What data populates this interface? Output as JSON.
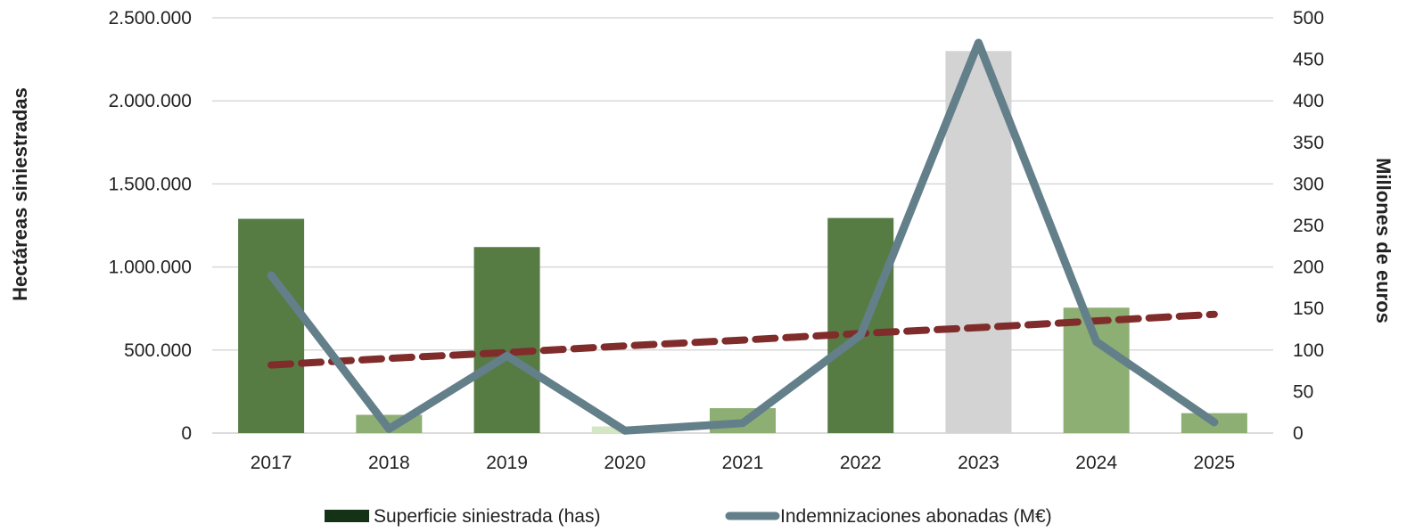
{
  "chart_data": {
    "type": "bar",
    "categories": [
      "2017",
      "2018",
      "2019",
      "2020",
      "2021",
      "2022",
      "2023",
      "2024",
      "2025"
    ],
    "ylabel_left": "Hectáreas siniestradas",
    "ylabel_right": "Millones de euros",
    "ylim_left": [
      0,
      2500000
    ],
    "ylim_right": [
      0,
      500
    ],
    "yticks_left": [
      "0",
      "500.000",
      "1.000.000",
      "1.500.000",
      "2.000.000",
      "2.500.000"
    ],
    "yticks_right": [
      "0",
      "50",
      "100",
      "150",
      "200",
      "250",
      "300",
      "350",
      "400",
      "450",
      "500"
    ],
    "grid": true,
    "legend_position": "bottom",
    "series": [
      {
        "name": "Superficie siniestrada (has)",
        "type": "bar",
        "axis": "left",
        "values": [
          1290000,
          110000,
          1120000,
          40000,
          150000,
          1295000,
          2300000,
          755000,
          120000
        ],
        "colors": [
          "#567c44",
          "#8daf74",
          "#567c44",
          "#d4e6c4",
          "#8daf74",
          "#567c44",
          "#d3d3d3",
          "#8daf74",
          "#8daf74"
        ],
        "legend_color": "#143316"
      },
      {
        "name": "Indemnizaciones abonadas (M€)",
        "type": "line",
        "axis": "right",
        "values": [
          190,
          5,
          93,
          3,
          12,
          118,
          470,
          110,
          13
        ],
        "color": "#637f8a"
      },
      {
        "type": "line",
        "style": "dashed",
        "axis": "right",
        "values": [
          82,
          90,
          97,
          105,
          112,
          120,
          127,
          135,
          143
        ],
        "color": "#7f2c2b"
      }
    ]
  }
}
